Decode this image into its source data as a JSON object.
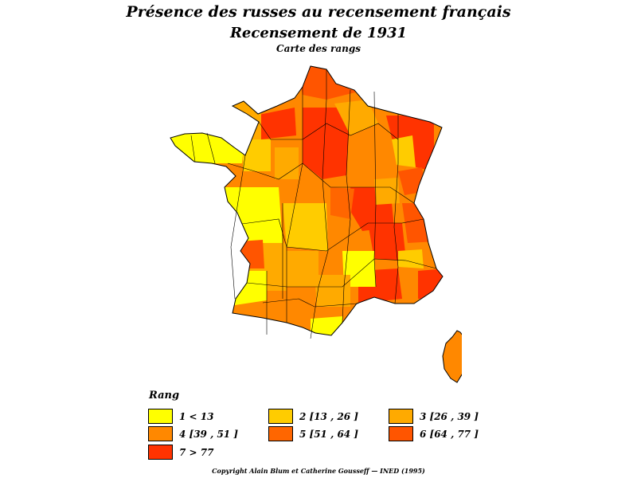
{
  "titles": {
    "main": "Présence des russes au recensement français",
    "sub": "Recensement de 1931",
    "map_type": "Carte des rangs"
  },
  "legend": {
    "title": "Rang",
    "classes": [
      {
        "rank": 1,
        "label": "1  <  13",
        "color": "#FFFF00"
      },
      {
        "rank": 2,
        "label": "2 [13 , 26 ]",
        "color": "#FFCC00"
      },
      {
        "rank": 3,
        "label": "3 [26 , 39 ]",
        "color": "#FFAA00"
      },
      {
        "rank": 4,
        "label": "4 [39 , 51 ]",
        "color": "#FF8800"
      },
      {
        "rank": 5,
        "label": "5 [51 , 64 ]",
        "color": "#FF6600"
      },
      {
        "rank": 6,
        "label": "6 [64 , 77 ]",
        "color": "#FF5500"
      },
      {
        "rank": 7,
        "label": "7  >  77",
        "color": "#FF3300"
      }
    ]
  },
  "copyright": "Copyright Alain Blum et Catherine Gousseff — INED (1995)"
}
